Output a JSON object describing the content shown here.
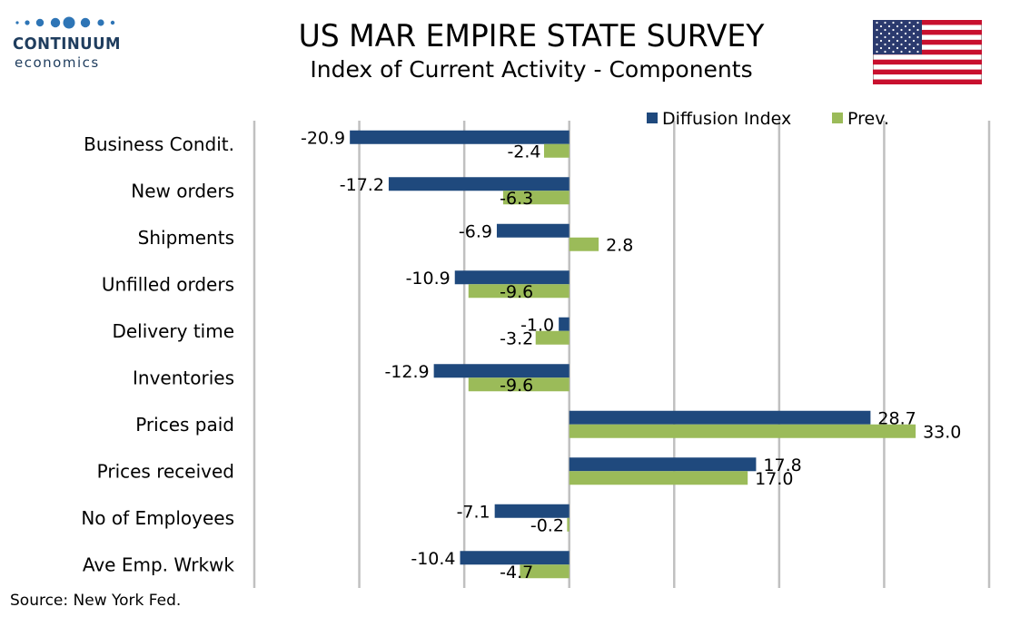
{
  "brand": {
    "name": "CONTINUUM",
    "sub": "economics"
  },
  "title": "US MAR EMPIRE STATE SURVEY",
  "subtitle": "Index of Current Activity - Components",
  "source": "Source: New York Fed.",
  "colors": {
    "series1": "#1f497d",
    "series2": "#9bbb59",
    "grid": "#c0c0c0",
    "brand": "#1f3d5e"
  },
  "chart_data": {
    "type": "bar",
    "orientation": "horizontal",
    "categories": [
      "Business Condit.",
      "New orders",
      "Shipments",
      "Unfilled orders",
      "Delivery time",
      "Inventories",
      "Prices paid",
      "Prices received",
      "No of Employees",
      "Ave Emp. Wrkwk"
    ],
    "series": [
      {
        "name": "Diffusion Index",
        "values": [
          -20.9,
          -17.2,
          -6.9,
          -10.9,
          -1.0,
          -12.9,
          28.7,
          17.8,
          -7.1,
          -10.4
        ],
        "labels": [
          "-20.9",
          "-17.2",
          "-6.9",
          "-10.9",
          "-1.0",
          "-12.9",
          "28.7",
          "17.8",
          "-7.1",
          "-10.4"
        ]
      },
      {
        "name": "Prev.",
        "values": [
          -2.4,
          -6.3,
          2.8,
          -9.6,
          -3.2,
          -9.6,
          33.0,
          17.0,
          -0.2,
          -4.7
        ],
        "labels": [
          "-2.4",
          "-6.3",
          "2.8",
          "-9.6",
          "-3.2",
          "-9.6",
          "33.0",
          "17.0",
          "-0.2",
          "-4.7"
        ]
      }
    ],
    "xlim": [
      -30,
      40
    ],
    "grid": true,
    "legend_position": "top-right"
  }
}
